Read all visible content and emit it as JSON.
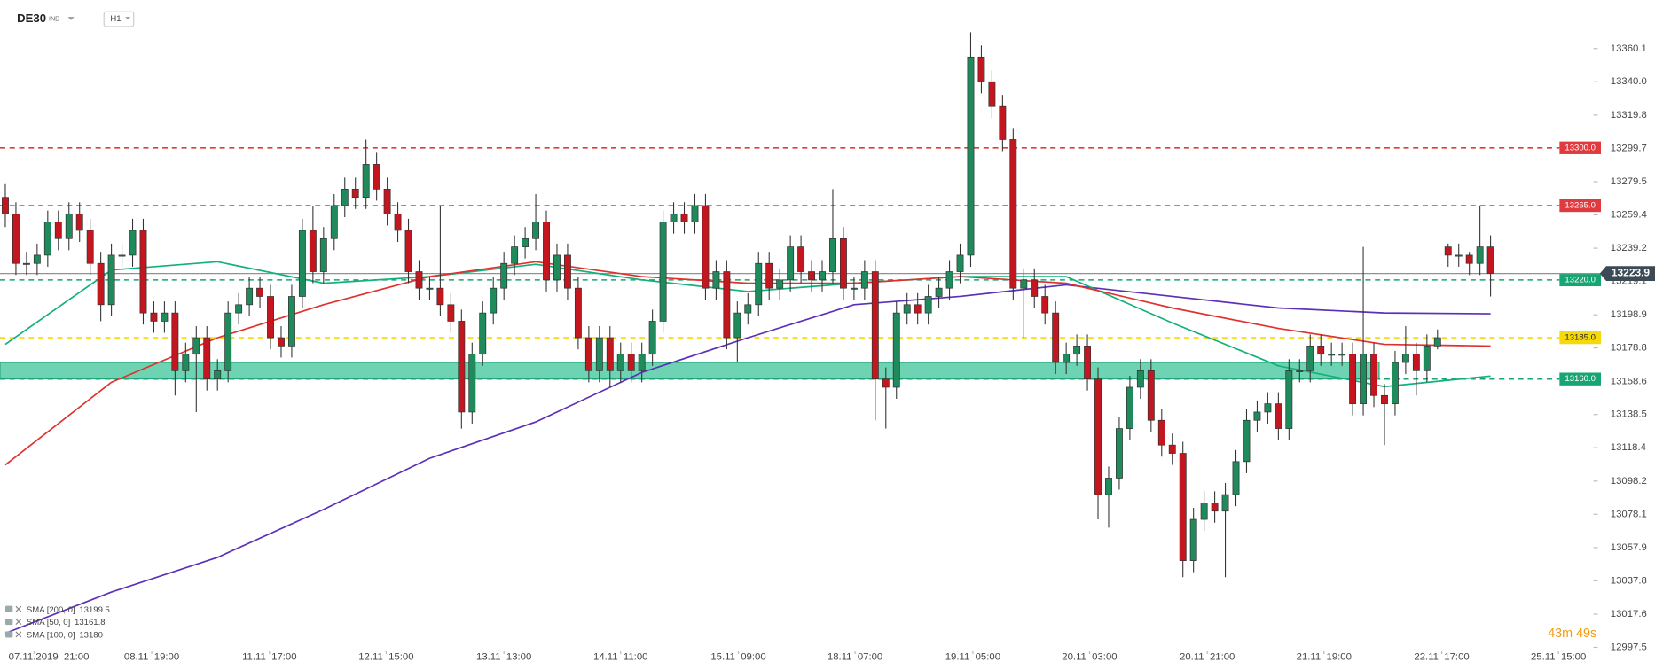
{
  "chart_data": {
    "type": "candlestick",
    "symbol": "DE30",
    "instrument_type": "IND",
    "timeframe": "H1",
    "timer": "43m 49s",
    "up_color": "#1f8a5c",
    "down_color": "#c3161f",
    "open": [
      13270,
      13260,
      13230,
      13230,
      13235,
      13255,
      13245,
      13260,
      13250,
      13230,
      13205,
      13235,
      13235,
      13250,
      13200,
      13195,
      13200,
      13165,
      13175,
      13185,
      13160,
      13165,
      13200,
      13205,
      13215,
      13210,
      13185,
      13180,
      13210,
      13250,
      13225,
      13245,
      13265,
      13275,
      13270,
      13290,
      13275,
      13260,
      13250,
      13225,
      13215,
      13215,
      13205,
      13195,
      13140,
      13175,
      13200,
      13215,
      13230,
      13240,
      13245,
      13255,
      13220,
      13235,
      13215,
      13185,
      13165,
      13185,
      13165,
      13175,
      13165,
      13175,
      13195,
      13255,
      13260,
      13255,
      13265,
      13215,
      13225,
      13185,
      13200,
      13205,
      13230,
      13215,
      13220,
      13240,
      13225,
      13220,
      13225,
      13245,
      13215,
      13215,
      13225,
      13160,
      13155,
      13200,
      13205,
      13200,
      13210,
      13215,
      13225,
      13235,
      13355,
      13340,
      13325,
      13305,
      13215,
      13220,
      13210,
      13200,
      13170,
      13175,
      13180,
      13160,
      13090,
      13100,
      13130,
      13155,
      13165,
      13135,
      13120,
      13115,
      13050,
      13075,
      13085,
      13080,
      13090,
      13110,
      13135,
      13140,
      13145,
      13130,
      13165,
      13165,
      13180,
      13175,
      13175,
      13175,
      13145,
      13175,
      13150,
      13145,
      13170,
      13175,
      13165,
      13180,
      13240,
      13235,
      13235,
      13230,
      13240
    ],
    "high": [
      13278,
      13267,
      13237,
      13242,
      13262,
      13262,
      13267,
      13267,
      13257,
      13237,
      13242,
      13242,
      13257,
      13257,
      13207,
      13207,
      13207,
      13182,
      13192,
      13192,
      13172,
      13207,
      13212,
      13222,
      13222,
      13217,
      13192,
      13217,
      13257,
      13265,
      13252,
      13272,
      13282,
      13282,
      13305,
      13297,
      13282,
      13267,
      13257,
      13232,
      13222,
      13265,
      13212,
      13202,
      13182,
      13207,
      13222,
      13237,
      13247,
      13252,
      13272,
      13262,
      13242,
      13242,
      13222,
      13192,
      13192,
      13192,
      13182,
      13182,
      13182,
      13202,
      13262,
      13267,
      13267,
      13272,
      13272,
      13232,
      13232,
      13207,
      13212,
      13237,
      13237,
      13227,
      13247,
      13247,
      13232,
      13232,
      13275,
      13252,
      13222,
      13232,
      13232,
      13167,
      13207,
      13212,
      13212,
      13217,
      13222,
      13232,
      13242,
      13370,
      13362,
      13347,
      13332,
      13312,
      13227,
      13227,
      13217,
      13207,
      13182,
      13187,
      13187,
      13167,
      13107,
      13137,
      13162,
      13172,
      13172,
      13142,
      13127,
      13122,
      13082,
      13092,
      13092,
      13097,
      13117,
      13142,
      13147,
      13152,
      13152,
      13172,
      13172,
      13187,
      13187,
      13182,
      13182,
      13182,
      13240,
      13182,
      13157,
      13177,
      13192,
      13182,
      13187,
      13190,
      13242,
      13242,
      13237,
      13265,
      13247
    ],
    "low": [
      13252,
      13223,
      13223,
      13223,
      13228,
      13238,
      13238,
      13243,
      13223,
      13195,
      13198,
      13228,
      13228,
      13193,
      13188,
      13188,
      13150,
      13158,
      13140,
      13153,
      13153,
      13158,
      13193,
      13198,
      13203,
      13178,
      13173,
      13173,
      13203,
      13218,
      13218,
      13238,
      13258,
      13263,
      13263,
      13268,
      13253,
      13243,
      13218,
      13208,
      13208,
      13198,
      13188,
      13130,
      13133,
      13168,
      13193,
      13208,
      13223,
      13233,
      13238,
      13213,
      13213,
      13208,
      13178,
      13158,
      13158,
      13155,
      13158,
      13158,
      13158,
      13168,
      13188,
      13248,
      13248,
      13248,
      13208,
      13208,
      13178,
      13170,
      13193,
      13198,
      13208,
      13208,
      13213,
      13218,
      13213,
      13213,
      13218,
      13208,
      13208,
      13208,
      13135,
      13130,
      13148,
      13193,
      13193,
      13193,
      13203,
      13208,
      13218,
      13228,
      13333,
      13318,
      13298,
      13208,
      13185,
      13203,
      13193,
      13163,
      13163,
      13168,
      13153,
      13075,
      13070,
      13093,
      13123,
      13148,
      13128,
      13113,
      13108,
      13040,
      13043,
      13068,
      13073,
      13040,
      13083,
      13103,
      13128,
      13133,
      13123,
      13123,
      13158,
      13158,
      13168,
      13168,
      13168,
      13138,
      13138,
      13143,
      13120,
      13138,
      13163,
      13150,
      13158,
      13178,
      13228,
      13228,
      13223,
      13223,
      13210
    ],
    "close": [
      13260,
      13230,
      13230,
      13235,
      13255,
      13245,
      13260,
      13250,
      13230,
      13205,
      13235,
      13235,
      13250,
      13200,
      13195,
      13200,
      13165,
      13175,
      13185,
      13160,
      13165,
      13200,
      13205,
      13215,
      13210,
      13185,
      13180,
      13210,
      13250,
      13225,
      13245,
      13265,
      13275,
      13270,
      13290,
      13275,
      13260,
      13250,
      13225,
      13215,
      13215,
      13205,
      13195,
      13140,
      13175,
      13200,
      13215,
      13230,
      13240,
      13245,
      13255,
      13220,
      13235,
      13215,
      13185,
      13165,
      13185,
      13165,
      13175,
      13165,
      13175,
      13195,
      13255,
      13260,
      13255,
      13265,
      13215,
      13225,
      13185,
      13200,
      13205,
      13230,
      13215,
      13220,
      13240,
      13225,
      13220,
      13225,
      13245,
      13215,
      13215,
      13225,
      13160,
      13155,
      13200,
      13205,
      13200,
      13210,
      13215,
      13225,
      13235,
      13355,
      13340,
      13325,
      13305,
      13215,
      13220,
      13210,
      13200,
      13170,
      13175,
      13180,
      13160,
      13090,
      13100,
      13130,
      13155,
      13165,
      13135,
      13120,
      13115,
      13050,
      13075,
      13085,
      13080,
      13090,
      13110,
      13135,
      13140,
      13145,
      13130,
      13165,
      13165,
      13180,
      13175,
      13175,
      13175,
      13145,
      13175,
      13150,
      13145,
      13170,
      13175,
      13165,
      13180,
      13185,
      13235,
      13235,
      13230,
      13240,
      13223.9
    ],
    "xlim": [
      -0.5,
      149.5
    ],
    "xticks": [
      {
        "value": 2.7,
        "label": "07.11.2019  21:00"
      },
      {
        "value": 13.8,
        "label": "08.11  19:00"
      },
      {
        "value": 24.9,
        "label": "11.11  17:00"
      },
      {
        "value": 35.9,
        "label": "12.11  15:00"
      },
      {
        "value": 47,
        "label": "13.11  13:00"
      },
      {
        "value": 58,
        "label": "14.11  11:00"
      },
      {
        "value": 69.1,
        "label": "15.11  09:00"
      },
      {
        "value": 80.1,
        "label": "18.11  07:00"
      },
      {
        "value": 91.2,
        "label": "19.11  05:00"
      },
      {
        "value": 102.2,
        "label": "20.11  03:00"
      },
      {
        "value": 113.3,
        "label": "20.11  21:00"
      },
      {
        "value": 124.3,
        "label": "21.11  19:00"
      },
      {
        "value": 135.4,
        "label": "22.11  17:00"
      },
      {
        "value": 146.4,
        "label": "25.11  15:00"
      }
    ],
    "ylim": [
      12996,
      13389.5
    ],
    "yticks": [
      13360.1,
      {
        "value": 13340,
        "label": "13340.0"
      },
      13319.8,
      13299.7,
      13279.5,
      13259.4,
      13239.2,
      13219.1,
      13198.9,
      13178.8,
      13158.6,
      13138.5,
      13118.4,
      13098.2,
      13078.1,
      13057.9,
      13037.8,
      13017.6,
      12997.5
    ],
    "levels": [
      {
        "value": 13300,
        "label": "13300.0",
        "color": "#e03a3e"
      },
      {
        "value": 13265,
        "label": "13265.0",
        "color": "#e03a3e"
      },
      {
        "value": 13220,
        "label": "13220.0",
        "color": "#17a673"
      },
      {
        "value": 13185,
        "label": "13185.0",
        "color": "#f5d90a"
      },
      {
        "value": 13160,
        "label": "13160.0",
        "color": "#17a673"
      }
    ],
    "zones": [
      {
        "from": 13160,
        "to": 13170,
        "color": "#3cc49a"
      }
    ],
    "last_price": {
      "value": 13223.9,
      "color": "#3b4a54"
    },
    "indicators": [
      {
        "name": "SMA [200, 0]",
        "value": 13199.5,
        "color": "#5b2fb8",
        "x": [
          0,
          10,
          20,
          30,
          40,
          50,
          60,
          70,
          80,
          90,
          100,
          110,
          120,
          130,
          140
        ],
        "values": [
          13006,
          13031,
          13052,
          13081,
          13112,
          13134,
          13164,
          13185,
          13205,
          13210,
          13217,
          13210,
          13203,
          13200,
          13199.5
        ]
      },
      {
        "name": "SMA [50, 0]",
        "value": 13161.8,
        "color": "#12b07a",
        "x": [
          0,
          10,
          20,
          30,
          40,
          50,
          60,
          70,
          80,
          90,
          100,
          110,
          120,
          130,
          140
        ],
        "values": [
          13181,
          13226,
          13231,
          13218,
          13222,
          13229.5,
          13220,
          13213,
          13218,
          13222,
          13222,
          13194,
          13168,
          13155.4,
          13161.8
        ]
      },
      {
        "name": "SMA [100, 0]",
        "value": 13180.0,
        "color": "#e0312e",
        "x": [
          0,
          10,
          20,
          30,
          40,
          50,
          60,
          70,
          80,
          90,
          100,
          110,
          120,
          130,
          140
        ],
        "values": [
          13108,
          13158,
          13185,
          13205,
          13222,
          13231,
          13222,
          13218,
          13218,
          13222,
          13218,
          13203,
          13190.6,
          13181,
          13180
        ]
      }
    ]
  }
}
